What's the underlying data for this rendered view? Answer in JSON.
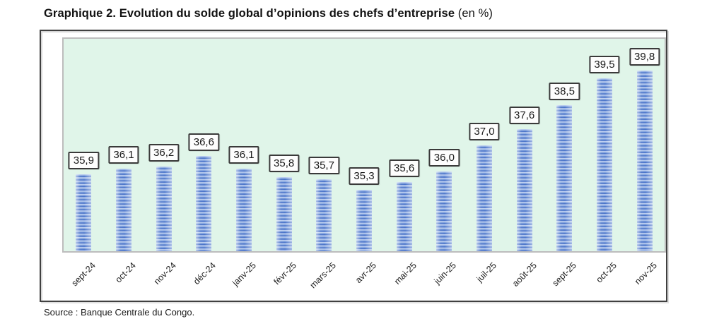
{
  "title": {
    "main": "Graphique 2. Evolution du solde global d’opinions des chefs d’entreprise",
    "suffix": " (en %)"
  },
  "source": "Source : Banque Centrale du Congo.",
  "colors": {
    "plot_bg": "#E0F5E9",
    "bar_dark": "#4A74C9",
    "bar_light": "#C8D7F3",
    "frame_border": "#404040",
    "label_border": "#3A3A3A"
  },
  "chart_data": {
    "type": "bar",
    "title": "Graphique 2. Evolution du solde global d’opinions des chefs d’entreprise (en %)",
    "categories": [
      "sept-24",
      "oct-24",
      "nov-24",
      "déc-24",
      "janv-25",
      "févr-25",
      "mars-25",
      "avr-25",
      "mai-25",
      "juin-25",
      "juil-25",
      "août-25",
      "sept-25",
      "oct-25",
      "nov-25"
    ],
    "values": [
      35.9,
      36.1,
      36.2,
      36.6,
      36.1,
      35.8,
      35.7,
      35.3,
      35.6,
      36.0,
      37.0,
      37.6,
      38.5,
      39.5,
      39.8
    ],
    "labels": [
      "35,9",
      "36,1",
      "36,2",
      "36,6",
      "36,1",
      "35,8",
      "35,7",
      "35,3",
      "35,6",
      "36,0",
      "37,0",
      "37,6",
      "38,5",
      "39,5",
      "39,8"
    ],
    "xlabel": "",
    "ylabel": "",
    "ylim": [
      33,
      41
    ],
    "grid": false,
    "legend": false,
    "value_labels_boxed": true,
    "x_label_rotation": -45
  }
}
